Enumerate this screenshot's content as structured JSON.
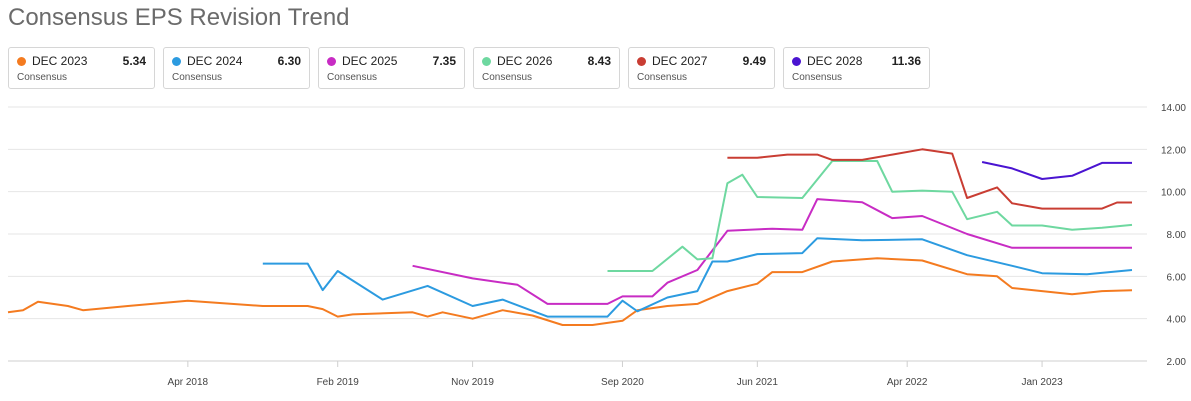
{
  "title": "Consensus EPS Revision Trend",
  "legend": [
    {
      "name": "DEC 2023",
      "value": "5.34",
      "sub": "Consensus",
      "color": "#f47b20"
    },
    {
      "name": "DEC 2024",
      "value": "6.30",
      "sub": "Consensus",
      "color": "#2c9be0"
    },
    {
      "name": "DEC 2025",
      "value": "7.35",
      "sub": "Consensus",
      "color": "#c82cc4"
    },
    {
      "name": "DEC 2026",
      "value": "8.43",
      "sub": "Consensus",
      "color": "#6ed8a0"
    },
    {
      "name": "DEC 2027",
      "value": "9.49",
      "sub": "Consensus",
      "color": "#c93d33"
    },
    {
      "name": "DEC 2028",
      "value": "11.36",
      "sub": "Consensus",
      "color": "#4a14d1"
    }
  ],
  "chart_data": {
    "type": "line",
    "title": "Consensus EPS Revision Trend",
    "xlabel": "",
    "ylabel": "",
    "ylim": [
      2,
      14
    ],
    "yticks": [
      "2.00",
      "4.00",
      "6.00",
      "8.00",
      "10.00",
      "12.00",
      "14.00"
    ],
    "xlim": [
      "2017-04",
      "2023-07"
    ],
    "xticks": [
      {
        "label": "Apr 2018",
        "x": "2018-04"
      },
      {
        "label": "Feb 2019",
        "x": "2019-02"
      },
      {
        "label": "Nov 2019",
        "x": "2019-11"
      },
      {
        "label": "Sep 2020",
        "x": "2020-09"
      },
      {
        "label": "Jun 2021",
        "x": "2021-06"
      },
      {
        "label": "Apr 2022",
        "x": "2022-04"
      },
      {
        "label": "Jan 2023",
        "x": "2023-01"
      }
    ],
    "grid": "horizontal",
    "series": [
      {
        "name": "DEC 2023",
        "color": "#f47b20",
        "points": [
          [
            "2017-04",
            4.3
          ],
          [
            "2017-05",
            4.4
          ],
          [
            "2017-06",
            4.8
          ],
          [
            "2017-08",
            4.6
          ],
          [
            "2017-09",
            4.4
          ],
          [
            "2017-12",
            4.6
          ],
          [
            "2018-04",
            4.85
          ],
          [
            "2018-09",
            4.6
          ],
          [
            "2018-12",
            4.6
          ],
          [
            "2019-01",
            4.45
          ],
          [
            "2019-02",
            4.1
          ],
          [
            "2019-03",
            4.2
          ],
          [
            "2019-07",
            4.3
          ],
          [
            "2019-08",
            4.1
          ],
          [
            "2019-09",
            4.3
          ],
          [
            "2019-11",
            4.0
          ],
          [
            "2020-01",
            4.4
          ],
          [
            "2020-03",
            4.15
          ],
          [
            "2020-05",
            3.7
          ],
          [
            "2020-07",
            3.7
          ],
          [
            "2020-09",
            3.9
          ],
          [
            "2020-10",
            4.4
          ],
          [
            "2020-12",
            4.6
          ],
          [
            "2021-02",
            4.7
          ],
          [
            "2021-04",
            5.3
          ],
          [
            "2021-06",
            5.65
          ],
          [
            "2021-07",
            6.2
          ],
          [
            "2021-09",
            6.2
          ],
          [
            "2021-11",
            6.7
          ],
          [
            "2022-02",
            6.85
          ],
          [
            "2022-05",
            6.75
          ],
          [
            "2022-08",
            6.1
          ],
          [
            "2022-10",
            6.0
          ],
          [
            "2022-11",
            5.45
          ],
          [
            "2023-01",
            5.3
          ],
          [
            "2023-03",
            5.15
          ],
          [
            "2023-05",
            5.3
          ],
          [
            "2023-07",
            5.34
          ]
        ]
      },
      {
        "name": "DEC 2024",
        "color": "#2c9be0",
        "points": [
          [
            "2018-09",
            6.6
          ],
          [
            "2018-12",
            6.6
          ],
          [
            "2019-01",
            5.35
          ],
          [
            "2019-02",
            6.25
          ],
          [
            "2019-05",
            4.9
          ],
          [
            "2019-08",
            5.55
          ],
          [
            "2019-11",
            4.6
          ],
          [
            "2020-01",
            4.9
          ],
          [
            "2020-04",
            4.1
          ],
          [
            "2020-08",
            4.1
          ],
          [
            "2020-09",
            4.85
          ],
          [
            "2020-10",
            4.35
          ],
          [
            "2020-12",
            5.0
          ],
          [
            "2021-02",
            5.3
          ],
          [
            "2021-03",
            6.7
          ],
          [
            "2021-04",
            6.7
          ],
          [
            "2021-06",
            7.05
          ],
          [
            "2021-09",
            7.1
          ],
          [
            "2021-10",
            7.8
          ],
          [
            "2022-01",
            7.7
          ],
          [
            "2022-05",
            7.75
          ],
          [
            "2022-08",
            7.0
          ],
          [
            "2022-11",
            6.5
          ],
          [
            "2023-01",
            6.15
          ],
          [
            "2023-04",
            6.1
          ],
          [
            "2023-07",
            6.3
          ]
        ]
      },
      {
        "name": "DEC 2025",
        "color": "#c82cc4",
        "points": [
          [
            "2019-07",
            6.5
          ],
          [
            "2019-11",
            5.9
          ],
          [
            "2020-02",
            5.6
          ],
          [
            "2020-04",
            4.7
          ],
          [
            "2020-08",
            4.7
          ],
          [
            "2020-09",
            5.05
          ],
          [
            "2020-11",
            5.05
          ],
          [
            "2020-12",
            5.7
          ],
          [
            "2021-02",
            6.3
          ],
          [
            "2021-04",
            8.15
          ],
          [
            "2021-07",
            8.25
          ],
          [
            "2021-09",
            8.2
          ],
          [
            "2021-10",
            9.65
          ],
          [
            "2022-01",
            9.5
          ],
          [
            "2022-03",
            8.75
          ],
          [
            "2022-05",
            8.85
          ],
          [
            "2022-08",
            8.0
          ],
          [
            "2022-11",
            7.35
          ],
          [
            "2023-01",
            7.35
          ],
          [
            "2023-05",
            7.35
          ],
          [
            "2023-07",
            7.35
          ]
        ]
      },
      {
        "name": "DEC 2026",
        "color": "#6ed8a0",
        "points": [
          [
            "2020-08",
            6.25
          ],
          [
            "2020-11",
            6.25
          ],
          [
            "2021-01",
            7.4
          ],
          [
            "2021-02",
            6.8
          ],
          [
            "2021-03",
            6.85
          ],
          [
            "2021-04",
            10.4
          ],
          [
            "2021-05",
            10.8
          ],
          [
            "2021-06",
            9.75
          ],
          [
            "2021-09",
            9.7
          ],
          [
            "2021-11",
            11.45
          ],
          [
            "2022-02",
            11.45
          ],
          [
            "2022-03",
            10.0
          ],
          [
            "2022-05",
            10.05
          ],
          [
            "2022-07",
            10.0
          ],
          [
            "2022-08",
            8.7
          ],
          [
            "2022-10",
            9.05
          ],
          [
            "2022-11",
            8.4
          ],
          [
            "2023-01",
            8.4
          ],
          [
            "2023-03",
            8.2
          ],
          [
            "2023-05",
            8.3
          ],
          [
            "2023-07",
            8.43
          ]
        ]
      },
      {
        "name": "DEC 2027",
        "color": "#c93d33",
        "points": [
          [
            "2021-04",
            11.6
          ],
          [
            "2021-06",
            11.6
          ],
          [
            "2021-08",
            11.75
          ],
          [
            "2021-10",
            11.75
          ],
          [
            "2021-11",
            11.5
          ],
          [
            "2022-01",
            11.5
          ],
          [
            "2022-03",
            11.75
          ],
          [
            "2022-05",
            12.0
          ],
          [
            "2022-07",
            11.8
          ],
          [
            "2022-08",
            9.7
          ],
          [
            "2022-10",
            10.2
          ],
          [
            "2022-11",
            9.45
          ],
          [
            "2023-01",
            9.2
          ],
          [
            "2023-05",
            9.2
          ],
          [
            "2023-06",
            9.49
          ],
          [
            "2023-07",
            9.49
          ]
        ]
      },
      {
        "name": "DEC 2028",
        "color": "#4a14d1",
        "points": [
          [
            "2022-09",
            11.4
          ],
          [
            "2022-11",
            11.1
          ],
          [
            "2023-01",
            10.6
          ],
          [
            "2023-03",
            10.75
          ],
          [
            "2023-05",
            11.36
          ],
          [
            "2023-07",
            11.36
          ]
        ]
      }
    ]
  }
}
